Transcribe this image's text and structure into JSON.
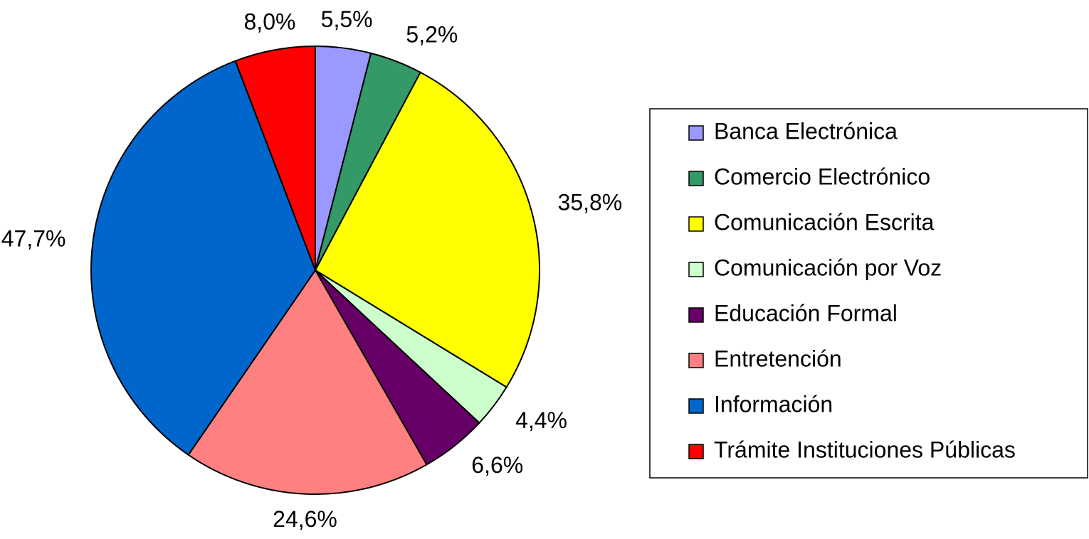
{
  "chart_data": {
    "type": "pie",
    "categories": [
      "Banca Electrónica",
      "Comercio Electrónico",
      "Comunicación Escrita",
      "Comunicación por Voz",
      "Educación Formal",
      "Entretención",
      "Información",
      "Trámite Instituciones Públicas"
    ],
    "values": [
      5.5,
      5.2,
      35.8,
      4.4,
      6.6,
      24.6,
      47.7,
      8.0
    ],
    "value_labels": [
      "5,5%",
      "5,2%",
      "35,8%",
      "4,4%",
      "6,6%",
      "24,6%",
      "47,7%",
      "8,0%"
    ],
    "colors": [
      "#9999ff",
      "#339966",
      "#ffff00",
      "#ccffcc",
      "#660066",
      "#ff8080",
      "#0066cc",
      "#ff0000"
    ],
    "legend": "right"
  }
}
